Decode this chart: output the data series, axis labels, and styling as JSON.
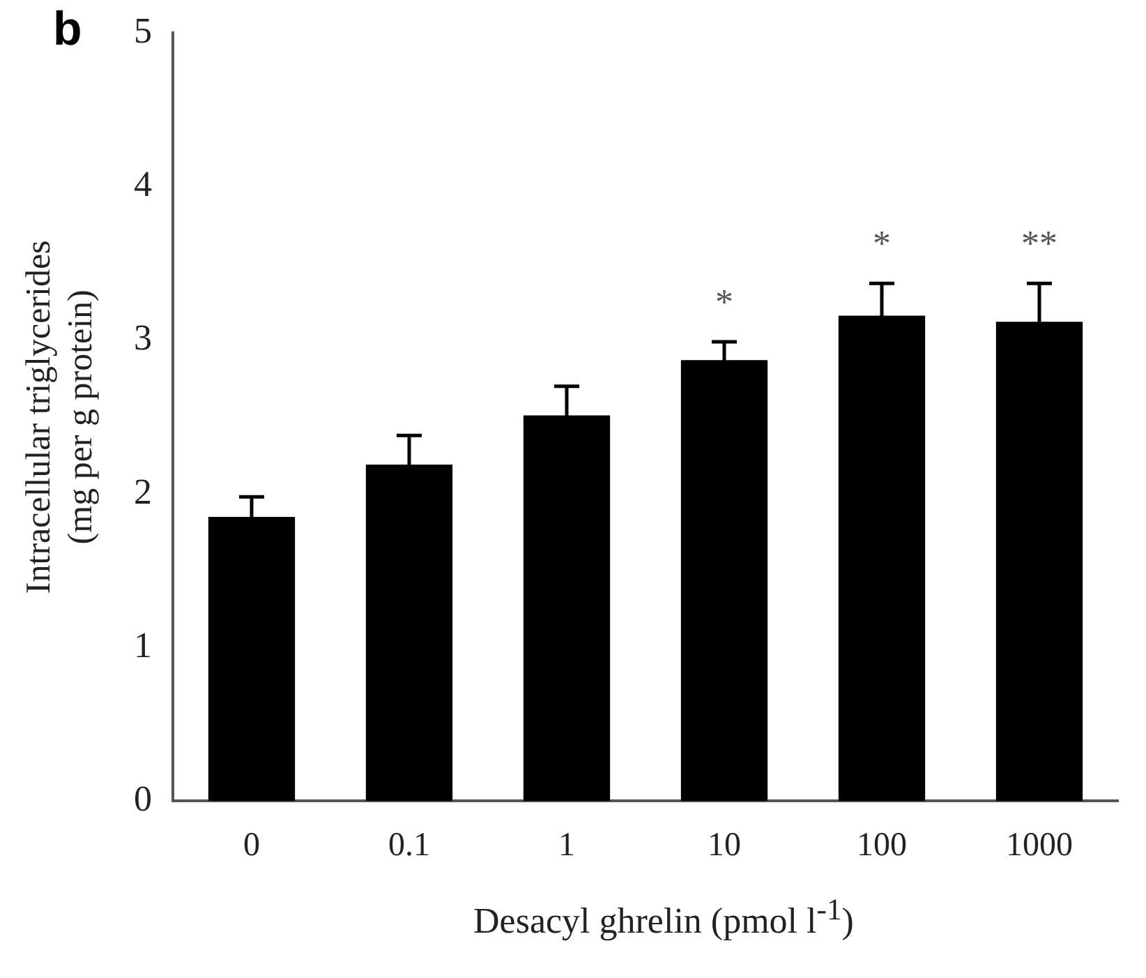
{
  "chart_data": {
    "type": "bar",
    "ylabel": "Intracellular triglycerides\n(mg per g protein)",
    "xlabel": "Desacyl ghrelin (pmol l$^{-1}$)",
    "categories": [
      "0",
      "0.1",
      "1",
      "10",
      "100",
      "1000"
    ],
    "values": [
      1.85,
      2.19,
      2.51,
      2.87,
      3.16,
      3.12
    ],
    "errors": [
      0.13,
      0.19,
      0.19,
      0.12,
      0.21,
      0.25
    ],
    "color": "#000000",
    "ylim": [
      0,
      5
    ],
    "yticks": [
      0,
      1,
      2,
      3,
      4,
      5
    ],
    "annotations": [
      "b",
      {
        "text": "*",
        "x": "10",
        "y": 2.99
      },
      {
        "text": "*",
        "x": "100",
        "y": 3.37
      },
      {
        "text": "**",
        "x": "1000",
        "y": 3.37
      }
    ]
  }
}
